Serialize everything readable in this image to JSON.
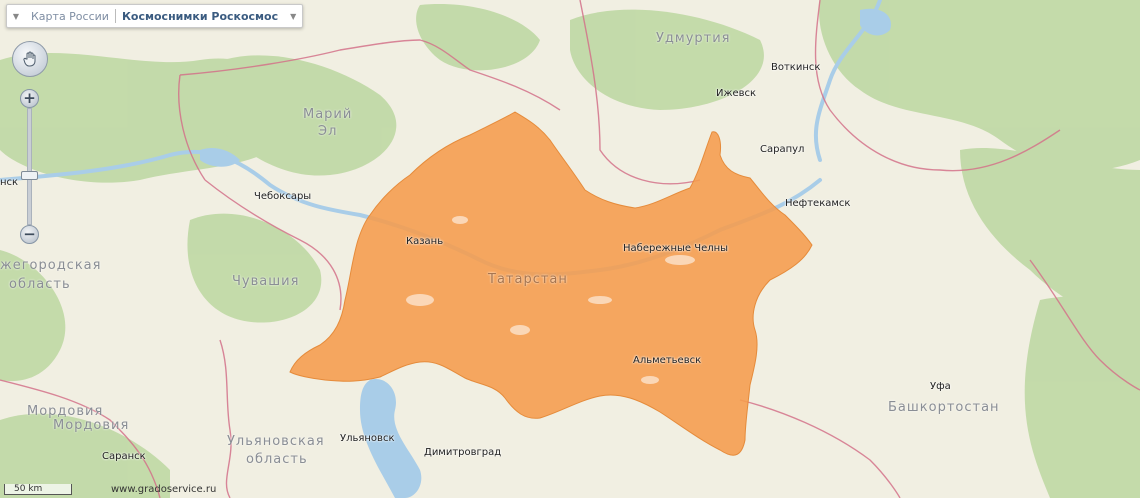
{
  "tabs": [
    {
      "label": "Карта России",
      "active": false
    },
    {
      "label": "Космоснимки Роскосмос",
      "active": true
    }
  ],
  "cities": {
    "cheboksary": "Чебоксары",
    "kazan": "Казань",
    "naberezhnye_chelny": "Набережные Челны",
    "almetyevsk": "Альметьевск",
    "ulyanovsk": "Ульяновск",
    "dimitrovgrad": "Димитровград",
    "izhevsk": "Ижевск",
    "votkinsk": "Воткинск",
    "sarapul": "Сарапул",
    "neftekamsk": "Нефтекамск",
    "ufa": "Уфа",
    "saransk": "Саранск",
    "nsk_fragment": "нск"
  },
  "regions": {
    "udmurtia": "Удмуртия",
    "mari_el_1": "Марий",
    "mari_el_2": "Эл",
    "tatarstan": "Татарстан",
    "chuvashia": "Чувашия",
    "nizhny_1": "жегородская",
    "nizhny_2": "область",
    "mordovia_1": "Мордовия",
    "mordovia_2": "Мордовия",
    "ulyanovsk_1": "Ульяновская",
    "ulyanovsk_2": "область",
    "bashkortostan": "Башкортостан"
  },
  "scale_label": "50 km",
  "credit": "www.gradoservice.ru",
  "colors": {
    "highlight": "#f59c4c",
    "forest": "#bfd8a4",
    "background": "#f1efe2",
    "water": "#a9cde8",
    "border": "#d3728a"
  },
  "icons": {
    "pan": "hand-icon",
    "zoom_in": "plus-icon",
    "zoom_out": "minus-icon"
  }
}
